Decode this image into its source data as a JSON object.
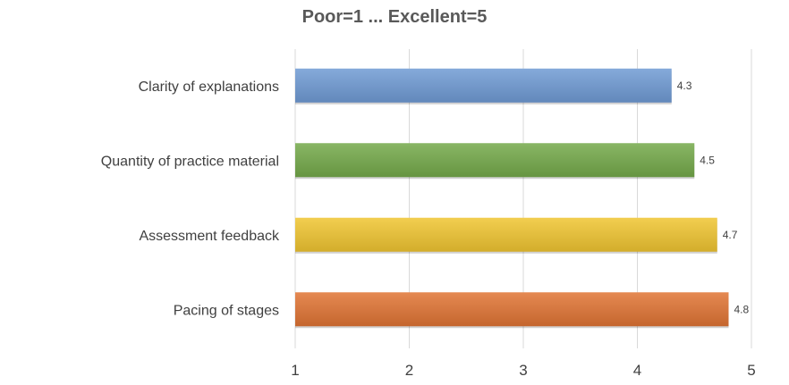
{
  "chart_data": {
    "type": "bar",
    "orientation": "horizontal",
    "title": "Poor=1 ... Excellent=5",
    "xlabel": "",
    "ylabel": "",
    "categories": [
      "Clarity of explanations",
      "Quantity of practice material",
      "Assessment feedback",
      "Pacing of stages"
    ],
    "values": [
      4.3,
      4.5,
      4.7,
      4.8
    ],
    "data_labels": [
      "4.3",
      "4.5",
      "4.7",
      "4.8"
    ],
    "colors": [
      "#6f9bd4",
      "#74a94a",
      "#f0c531",
      "#e07434"
    ],
    "xlim": [
      1,
      5
    ],
    "ticks": [
      1,
      2,
      3,
      4,
      5
    ],
    "tick_labels": [
      "1",
      "2",
      "3",
      "4",
      "5"
    ],
    "grid": "vertical",
    "legend": "none"
  }
}
